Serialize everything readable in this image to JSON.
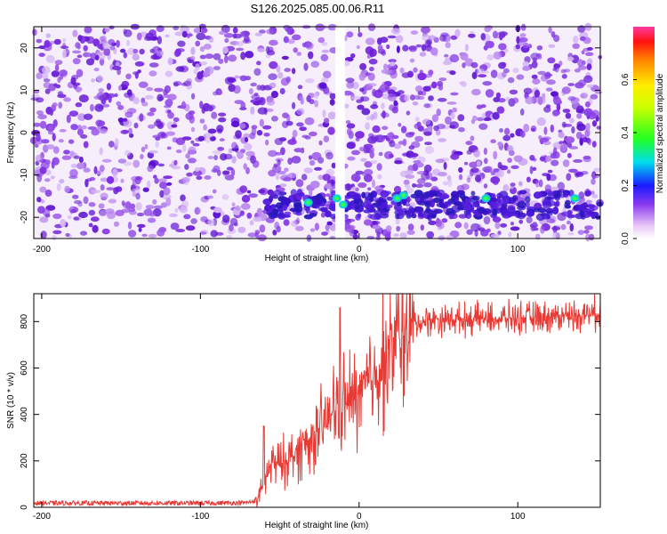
{
  "title": "S126.2025.085.00.06.R11",
  "colors": {
    "line": "#e83a35",
    "spectrogram_dominant": "#6a1fd6",
    "frame": "#000000",
    "background": "#ffffff"
  },
  "chart_data": [
    {
      "type": "heatmap",
      "title": "S126.2025.085.00.06.R11",
      "xlabel": "Height of straight line (km)",
      "ylabel": "Frequency (Hz)",
      "xlim": [
        -205,
        152
      ],
      "ylim": [
        -25,
        25
      ],
      "x_ticks": [
        -200,
        -100,
        0,
        100
      ],
      "y_ticks": [
        -20,
        -10,
        0,
        10,
        20
      ],
      "colorbar": {
        "label": "Normalized spectral amplitude",
        "range": [
          0.0,
          0.8
        ],
        "ticks": [
          0.0,
          0.2,
          0.4,
          0.6
        ],
        "colormap": "rainbow (white-magenta to red)"
      },
      "features": [
        {
          "description": "broadband low-amplitude noise",
          "x_range": [
            -205,
            152
          ],
          "y_range": [
            -25,
            25
          ],
          "amplitude": 0.05
        },
        {
          "description": "narrow band of enhanced amplitude",
          "x_range": [
            -58,
            152
          ],
          "y_range": [
            -20,
            -14
          ],
          "amplitude": 0.15
        },
        {
          "description": "gap with no data",
          "x_range": [
            -15,
            -9
          ],
          "y_range": [
            -25,
            25
          ],
          "amplitude": 0.0
        }
      ],
      "peaks": [
        {
          "x": -32,
          "y": -16.5,
          "amplitude": 0.3
        },
        {
          "x": -14,
          "y": -15.5,
          "amplitude": 0.3
        },
        {
          "x": -10,
          "y": -17.0,
          "amplitude": 0.3
        },
        {
          "x": 24,
          "y": -15.5,
          "amplitude": 0.28
        },
        {
          "x": 28,
          "y": -14.8,
          "amplitude": 0.25
        },
        {
          "x": 80,
          "y": -15.5,
          "amplitude": 0.28
        },
        {
          "x": 136,
          "y": -15.5,
          "amplitude": 0.28
        }
      ]
    },
    {
      "type": "line",
      "xlabel": "Height of straight line (km)",
      "ylabel": "SNR (10 * v/v)",
      "xlim": [
        -205,
        152
      ],
      "ylim": [
        0,
        920
      ],
      "x_ticks": [
        -200,
        -100,
        0,
        100
      ],
      "y_ticks": [
        0,
        200,
        400,
        600,
        800
      ],
      "series": [
        {
          "color": "#e83a35",
          "x": [
            -205,
            -180,
            -150,
            -120,
            -90,
            -70,
            -65,
            -62,
            -58,
            -55,
            -50,
            -45,
            -40,
            -35,
            -30,
            -25,
            -20,
            -15,
            -12,
            -10,
            -5,
            0,
            5,
            10,
            15,
            20,
            25,
            30,
            35,
            40,
            50,
            60,
            80,
            100,
            120,
            140,
            152
          ],
          "y": [
            18,
            18,
            18,
            18,
            18,
            20,
            30,
            60,
            140,
            190,
            180,
            210,
            230,
            270,
            300,
            320,
            380,
            420,
            460,
            440,
            460,
            480,
            520,
            580,
            630,
            690,
            720,
            760,
            790,
            800,
            810,
            810,
            810,
            815,
            820,
            830,
            835
          ]
        }
      ],
      "spikes": [
        {
          "x": -12,
          "y": 860
        },
        {
          "x": -60,
          "y": 350
        }
      ]
    }
  ]
}
